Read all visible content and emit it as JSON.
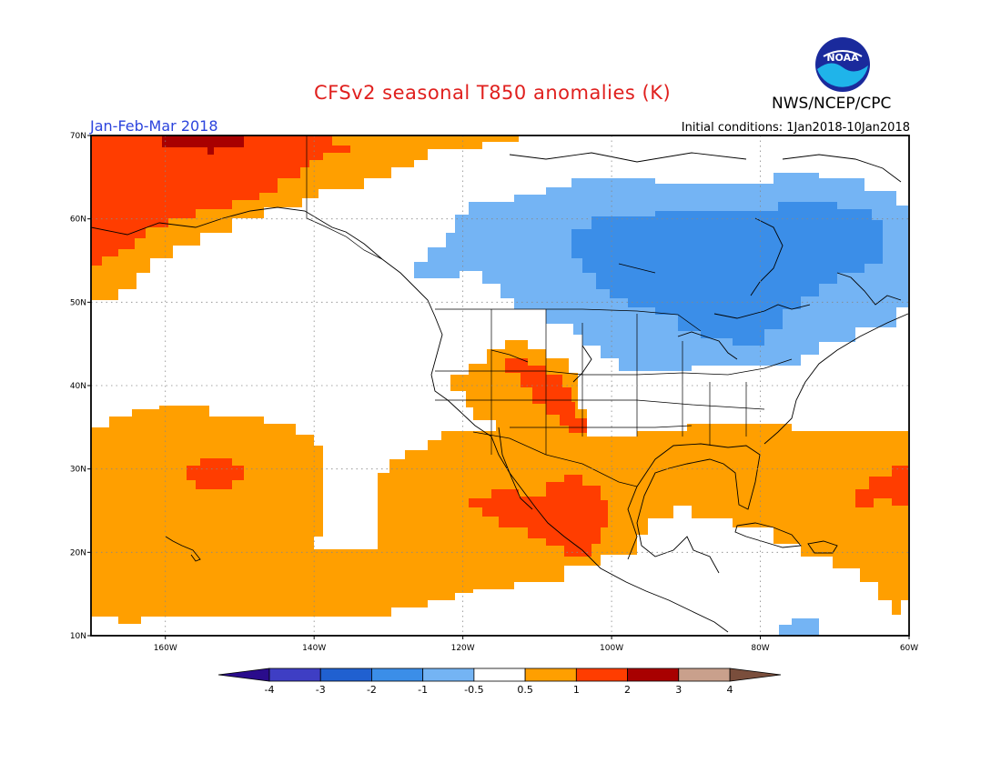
{
  "title": "CFSv2 seasonal T850 anomalies (K)",
  "agency": "NWS/NCEP/CPC",
  "logo_text": "NOAA",
  "period": "Jan-Feb-Mar 2018",
  "initial_conditions": "Initial conditions: 1Jan2018-10Jan2018",
  "map": {
    "lon_range": [
      -170,
      -60
    ],
    "lat_range": [
      10,
      70
    ],
    "lat_ticks": [
      {
        "value": 70,
        "label": "70N"
      },
      {
        "value": 60,
        "label": "60N"
      },
      {
        "value": 50,
        "label": "50N"
      },
      {
        "value": 40,
        "label": "40N"
      },
      {
        "value": 30,
        "label": "30N"
      },
      {
        "value": 20,
        "label": "20N"
      },
      {
        "value": 10,
        "label": "10N"
      }
    ],
    "lon_ticks": [
      {
        "value": -160,
        "label": "160W"
      },
      {
        "value": -140,
        "label": "140W"
      },
      {
        "value": -120,
        "label": "120W"
      },
      {
        "value": -100,
        "label": "100W"
      },
      {
        "value": -80,
        "label": "80W"
      },
      {
        "value": -60,
        "label": "60W"
      }
    ],
    "grid": true
  },
  "colorbar": {
    "levels": [
      "-4",
      "-3",
      "-2",
      "-1",
      "-0.5",
      "0.5",
      "1",
      "2",
      "3",
      "4"
    ],
    "colors": {
      "below_-4": "#2a0c8c",
      "-4_-3": "#3e3ec4",
      "-3_-2": "#2060d0",
      "-2_-1": "#3b8ee8",
      "-1_-0.5": "#74b4f4",
      "-0.5_0.5": "#ffffff",
      "0.5_1": "#ff9f00",
      "1_2": "#ff3d00",
      "2_3": "#a80000",
      "3_4": "#c9a08c",
      "above_4": "#7a4e3c"
    }
  },
  "colors": {
    "anom_0p5_1": "#ff9f00",
    "anom_1_2": "#ff3d00",
    "anom_2_3": "#a80000",
    "anom_m05_m1": "#74b4f4",
    "anom_m1_m2": "#3b8ee8",
    "title": "#e0201e",
    "period": "#2c44dd"
  }
}
